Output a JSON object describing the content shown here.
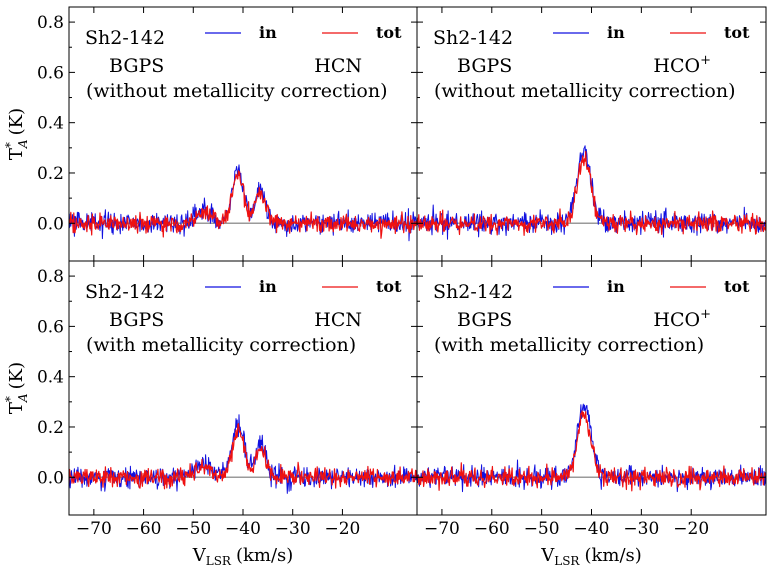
{
  "colors": {
    "in": "#1010e0",
    "tot": "#ee1111",
    "zero_line": "#9a9a9a"
  },
  "chart_data": [
    {
      "type": "line",
      "panel": "top-left",
      "source": "Sh2-142",
      "survey": "BGPS",
      "molecule": "HCN",
      "molecule_base": "HCN",
      "molecule_sup": "",
      "note": "(without metallicity correction)",
      "xlim": [
        -75,
        -5
      ],
      "ylim": [
        -0.15,
        0.86
      ],
      "yticks": [
        "0.0",
        "0.2",
        "0.4",
        "0.6",
        "0.8"
      ],
      "ylabel": "T*A (K)",
      "legend": [
        "in",
        "tot"
      ],
      "lines": [
        {
          "center": -48,
          "sigma": 1.5,
          "amp_in": 0.05,
          "amp_tot": 0.045
        },
        {
          "center": -41,
          "sigma": 1.2,
          "amp_in": 0.21,
          "amp_tot": 0.19
        },
        {
          "center": -36.5,
          "sigma": 1.0,
          "amp_in": 0.14,
          "amp_tot": 0.12
        }
      ],
      "noise_rms": 0.018
    },
    {
      "type": "line",
      "panel": "top-right",
      "source": "Sh2-142",
      "survey": "BGPS",
      "molecule": "HCO+",
      "molecule_base": "HCO",
      "molecule_sup": "+",
      "note": "(without metallicity correction)",
      "xlim": [
        -75,
        -5
      ],
      "ylim": [
        -0.15,
        0.86
      ],
      "legend": [
        "in",
        "tot"
      ],
      "lines": [
        {
          "center": -41.5,
          "sigma": 1.4,
          "amp_in": 0.29,
          "amp_tot": 0.25
        }
      ],
      "noise_rms": 0.018
    },
    {
      "type": "line",
      "panel": "bottom-left",
      "source": "Sh2-142",
      "survey": "BGPS",
      "molecule": "HCN",
      "molecule_base": "HCN",
      "molecule_sup": "",
      "note": "(with metallicity correction)",
      "xlim": [
        -75,
        -5
      ],
      "ylim": [
        -0.15,
        0.86
      ],
      "yticks": [
        "0.0",
        "0.2",
        "0.4",
        "0.6",
        "0.8"
      ],
      "xticks": [
        "−70",
        "−60",
        "−50",
        "−40",
        "−30",
        "−20"
      ],
      "ylabel": "T*A (K)",
      "xlabel": "VLSR (km/s)",
      "legend": [
        "in",
        "tot"
      ],
      "lines": [
        {
          "center": -48,
          "sigma": 1.5,
          "amp_in": 0.05,
          "amp_tot": 0.045
        },
        {
          "center": -41,
          "sigma": 1.2,
          "amp_in": 0.21,
          "amp_tot": 0.19
        },
        {
          "center": -36.5,
          "sigma": 1.0,
          "amp_in": 0.14,
          "amp_tot": 0.12
        }
      ],
      "noise_rms": 0.018
    },
    {
      "type": "line",
      "panel": "bottom-right",
      "source": "Sh2-142",
      "survey": "BGPS",
      "molecule": "HCO+",
      "molecule_base": "HCO",
      "molecule_sup": "+",
      "note": "(with metallicity correction)",
      "xlim": [
        -75,
        -5
      ],
      "ylim": [
        -0.15,
        0.86
      ],
      "xticks": [
        "−70",
        "−60",
        "−50",
        "−40",
        "−30",
        "−20"
      ],
      "xlabel": "VLSR (km/s)",
      "legend": [
        "in",
        "tot"
      ],
      "lines": [
        {
          "center": -41.5,
          "sigma": 1.4,
          "amp_in": 0.29,
          "amp_tot": 0.25
        }
      ],
      "noise_rms": 0.018
    }
  ],
  "axis": {
    "ylabel_main": "T",
    "ylabel_sup": "*",
    "ylabel_sub": "A",
    "ylabel_unit": "(K)",
    "xlabel_main": "V",
    "xlabel_sub": "LSR",
    "xlabel_unit": "(km/s)"
  }
}
